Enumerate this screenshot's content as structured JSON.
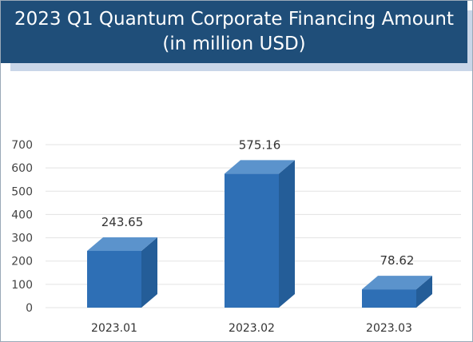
{
  "colors": {
    "title_background": "#1f4e79",
    "title_text": "#ffffff",
    "bar_front": "#2e6fb5",
    "bar_top": "#5b93cc",
    "bar_side": "#245d98",
    "gridline": "#e3e3e3"
  },
  "chart_data": {
    "type": "bar",
    "style": "3d-column",
    "title_lines": [
      "2023 Q1 Quantum Corporate Financing Amount",
      "(in million USD)"
    ],
    "categories": [
      "2023.01",
      "2023.02",
      "2023.03"
    ],
    "values": [
      243.65,
      575.16,
      78.62
    ],
    "data_labels": [
      "243.65",
      "575.16",
      "78.62"
    ],
    "yticks": [
      "0",
      "100",
      "200",
      "300",
      "400",
      "500",
      "600",
      "700"
    ],
    "ylim": [
      0,
      700
    ],
    "grid": true,
    "legend": "none"
  }
}
